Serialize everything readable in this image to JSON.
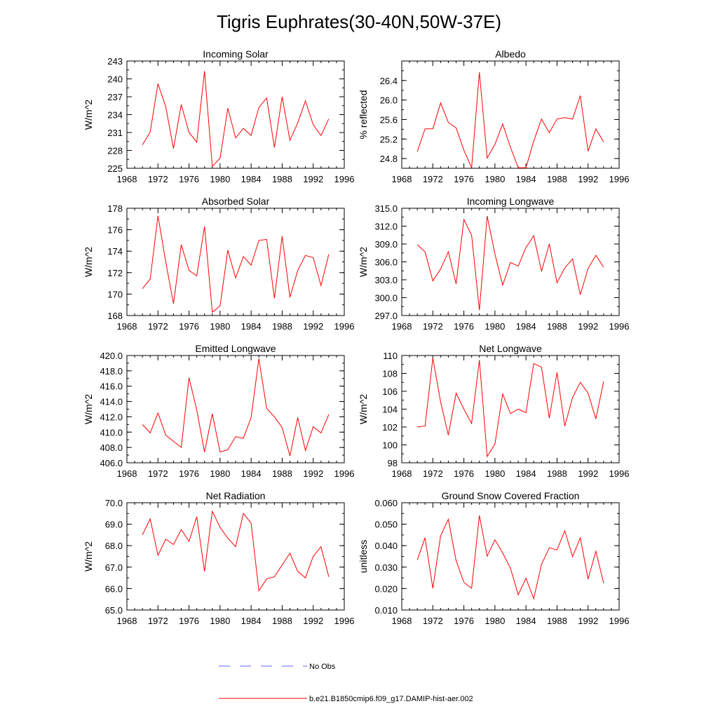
{
  "title": "Tigris Euphrates(30-40N,50W-37E)",
  "colors": {
    "model": "#ff0000",
    "obs": "#6666ff",
    "axis": "#000000"
  },
  "legend": {
    "obs_label": "No Obs",
    "model_label": "b.e21.B1850cmip6.f09_g17.DAMIP-hist-aer.002"
  },
  "chart_data": [
    {
      "type": "line",
      "title": "Incoming Solar",
      "ylabel": "W/m^2",
      "xlim": [
        1968,
        1996
      ],
      "xticks": [
        1968,
        1972,
        1976,
        1980,
        1984,
        1988,
        1992,
        1996
      ],
      "xtick_labels": [
        "1968",
        "1972",
        "1976",
        "1980",
        "1984",
        "1988",
        "1992",
        "1996"
      ],
      "ylim": [
        225,
        243
      ],
      "yticks": [
        225,
        228,
        231,
        234,
        237,
        240,
        243
      ],
      "ytick_labels": [
        "225",
        "228",
        "231",
        "234",
        "237",
        "240",
        "243"
      ],
      "x": [
        1970,
        1971,
        1972,
        1973,
        1974,
        1975,
        1976,
        1977,
        1978,
        1979,
        1980,
        1981,
        1982,
        1983,
        1984,
        1985,
        1986,
        1987,
        1988,
        1989,
        1990,
        1991,
        1992,
        1993,
        1994
      ],
      "y": [
        228.9,
        231.1,
        239.2,
        235.3,
        228.3,
        235.7,
        231.0,
        229.4,
        241.3,
        225.3,
        226.7,
        235.1,
        230.1,
        231.7,
        230.5,
        235.2,
        236.8,
        228.5,
        237.0,
        229.7,
        232.6,
        236.3,
        232.3,
        230.5,
        233.3
      ]
    },
    {
      "type": "line",
      "title": "Albedo",
      "ylabel": "% reflected",
      "xlim": [
        1968,
        1996
      ],
      "xticks": [
        1968,
        1972,
        1976,
        1980,
        1984,
        1988,
        1992,
        1996
      ],
      "xtick_labels": [
        "1968",
        "1972",
        "1976",
        "1980",
        "1984",
        "1988",
        "1992",
        "1996"
      ],
      "ylim": [
        24.6,
        26.8
      ],
      "yticks": [
        24.8,
        25.2,
        25.6,
        26.0,
        26.4
      ],
      "ytick_labels": [
        "24.8",
        "25.2",
        "25.6",
        "26.0",
        "26.4"
      ],
      "x": [
        1970,
        1971,
        1972,
        1973,
        1974,
        1975,
        1976,
        1977,
        1978,
        1979,
        1980,
        1981,
        1982,
        1983,
        1984,
        1985,
        1986,
        1987,
        1988,
        1989,
        1990,
        1991,
        1992,
        1993,
        1994
      ],
      "y": [
        24.94,
        25.41,
        25.41,
        25.94,
        25.54,
        25.43,
        24.97,
        24.61,
        26.57,
        24.81,
        25.09,
        25.51,
        25.03,
        24.61,
        24.61,
        25.16,
        25.61,
        25.33,
        25.61,
        25.64,
        25.61,
        26.09,
        24.95,
        25.41,
        25.14
      ]
    },
    {
      "type": "line",
      "title": "Absorbed Solar",
      "ylabel": "W/m^2",
      "xlim": [
        1968,
        1996
      ],
      "xticks": [
        1968,
        1972,
        1976,
        1980,
        1984,
        1988,
        1992,
        1996
      ],
      "xtick_labels": [
        "1968",
        "1972",
        "1976",
        "1980",
        "1984",
        "1988",
        "1992",
        "1996"
      ],
      "ylim": [
        168,
        178
      ],
      "yticks": [
        168,
        170,
        172,
        174,
        176,
        178
      ],
      "ytick_labels": [
        "168",
        "170",
        "172",
        "174",
        "176",
        "178"
      ],
      "x": [
        1970,
        1971,
        1972,
        1973,
        1974,
        1975,
        1976,
        1977,
        1978,
        1979,
        1980,
        1981,
        1982,
        1983,
        1984,
        1985,
        1986,
        1987,
        1988,
        1989,
        1990,
        1991,
        1992,
        1993,
        1994
      ],
      "y": [
        170.5,
        171.4,
        177.3,
        173.0,
        169.1,
        174.6,
        172.2,
        171.7,
        176.3,
        168.3,
        168.9,
        174.1,
        171.5,
        173.5,
        172.7,
        175.0,
        175.1,
        169.6,
        175.4,
        169.7,
        172.2,
        173.6,
        173.4,
        170.8,
        173.7
      ]
    },
    {
      "type": "line",
      "title": "Incoming Longwave",
      "ylabel": "W/m^2",
      "xlim": [
        1968,
        1996
      ],
      "xticks": [
        1968,
        1972,
        1976,
        1980,
        1984,
        1988,
        1992,
        1996
      ],
      "xtick_labels": [
        "1968",
        "1972",
        "1976",
        "1980",
        "1984",
        "1988",
        "1992",
        "1996"
      ],
      "ylim": [
        297,
        315
      ],
      "yticks": [
        297,
        300,
        303,
        306,
        309,
        312,
        315
      ],
      "ytick_labels": [
        "297.0",
        "300.0",
        "303.0",
        "306.0",
        "309.0",
        "312.0",
        "315.0"
      ],
      "x": [
        1970,
        1971,
        1972,
        1973,
        1974,
        1975,
        1976,
        1977,
        1978,
        1979,
        1980,
        1981,
        1982,
        1983,
        1984,
        1985,
        1986,
        1987,
        1988,
        1989,
        1990,
        1991,
        1992,
        1993,
        1994
      ],
      "y": [
        308.9,
        307.7,
        302.8,
        304.8,
        307.7,
        302.3,
        313.1,
        310.5,
        297.9,
        313.7,
        307.3,
        302.1,
        305.9,
        305.3,
        308.4,
        310.4,
        304.4,
        309.0,
        302.5,
        305.0,
        306.5,
        300.5,
        304.9,
        307.1,
        305.1
      ]
    },
    {
      "type": "line",
      "title": "Emitted Longwave",
      "ylabel": "W/m^2",
      "xlim": [
        1968,
        1996
      ],
      "xticks": [
        1968,
        1972,
        1976,
        1980,
        1984,
        1988,
        1992,
        1996
      ],
      "xtick_labels": [
        "1968",
        "1972",
        "1976",
        "1980",
        "1984",
        "1988",
        "1992",
        "1996"
      ],
      "ylim": [
        406,
        420
      ],
      "yticks": [
        406,
        408,
        410,
        412,
        414,
        416,
        418,
        420
      ],
      "ytick_labels": [
        "406.0",
        "408.0",
        "410.0",
        "412.0",
        "414.0",
        "416.0",
        "418.0",
        "420.0"
      ],
      "x": [
        1970,
        1971,
        1972,
        1973,
        1974,
        1975,
        1976,
        1977,
        1978,
        1979,
        1980,
        1981,
        1982,
        1983,
        1984,
        1985,
        1986,
        1987,
        1988,
        1989,
        1990,
        1991,
        1992,
        1993,
        1994
      ],
      "y": [
        411.0,
        409.9,
        412.5,
        409.6,
        408.8,
        408.0,
        417.1,
        412.9,
        407.4,
        412.4,
        407.4,
        407.7,
        409.4,
        409.2,
        411.9,
        419.6,
        413.1,
        412.0,
        410.6,
        406.9,
        411.9,
        407.6,
        410.7,
        409.9,
        412.3
      ]
    },
    {
      "type": "line",
      "title": "Net Longwave",
      "ylabel": "W/m^2",
      "xlim": [
        1968,
        1996
      ],
      "xticks": [
        1968,
        1972,
        1976,
        1980,
        1984,
        1988,
        1992,
        1996
      ],
      "xtick_labels": [
        "1968",
        "1972",
        "1976",
        "1980",
        "1984",
        "1988",
        "1992",
        "1996"
      ],
      "ylim": [
        98,
        110
      ],
      "yticks": [
        98,
        100,
        102,
        104,
        106,
        108,
        110
      ],
      "ytick_labels": [
        "98",
        "100",
        "102",
        "104",
        "106",
        "108",
        "110"
      ],
      "x": [
        1970,
        1971,
        1972,
        1973,
        1974,
        1975,
        1976,
        1977,
        1978,
        1979,
        1980,
        1981,
        1982,
        1983,
        1984,
        1985,
        1986,
        1987,
        1988,
        1989,
        1990,
        1991,
        1992,
        1993,
        1994
      ],
      "y": [
        102.0,
        102.1,
        109.7,
        104.8,
        101.1,
        105.8,
        104.0,
        102.4,
        109.5,
        98.7,
        100.1,
        105.7,
        103.5,
        104.0,
        103.6,
        109.1,
        108.7,
        103.0,
        108.1,
        102.1,
        105.3,
        107.0,
        105.8,
        102.9,
        107.1
      ]
    },
    {
      "type": "line",
      "title": "Net Radiation",
      "ylabel": "W/m^2",
      "xlim": [
        1968,
        1996
      ],
      "xticks": [
        1968,
        1972,
        1976,
        1980,
        1984,
        1988,
        1992,
        1996
      ],
      "xtick_labels": [
        "1968",
        "1972",
        "1976",
        "1980",
        "1984",
        "1988",
        "1992",
        "1996"
      ],
      "ylim": [
        65,
        70
      ],
      "yticks": [
        65,
        66,
        67,
        68,
        69,
        70
      ],
      "ytick_labels": [
        "65.0",
        "66.0",
        "67.0",
        "68.0",
        "69.0",
        "70.0"
      ],
      "x": [
        1970,
        1971,
        1972,
        1973,
        1974,
        1975,
        1976,
        1977,
        1978,
        1979,
        1980,
        1981,
        1982,
        1983,
        1984,
        1985,
        1986,
        1987,
        1988,
        1989,
        1990,
        1991,
        1992,
        1993,
        1994
      ],
      "y": [
        68.5,
        69.25,
        67.55,
        68.3,
        68.05,
        68.75,
        68.2,
        69.35,
        66.8,
        69.6,
        68.85,
        68.35,
        67.95,
        69.5,
        69.05,
        65.9,
        66.45,
        66.55,
        67.1,
        67.65,
        66.8,
        66.5,
        67.5,
        67.95,
        66.55
      ]
    },
    {
      "type": "line",
      "title": "Ground Snow Covered Fraction",
      "ylabel": "unitless",
      "xlim": [
        1968,
        1996
      ],
      "xticks": [
        1968,
        1972,
        1976,
        1980,
        1984,
        1988,
        1992,
        1996
      ],
      "xtick_labels": [
        "1968",
        "1972",
        "1976",
        "1980",
        "1984",
        "1988",
        "1992",
        "1996"
      ],
      "ylim": [
        0.01,
        0.06
      ],
      "yticks": [
        0.01,
        0.02,
        0.03,
        0.04,
        0.05,
        0.06
      ],
      "ytick_labels": [
        "0.010",
        "0.020",
        "0.030",
        "0.040",
        "0.050",
        "0.060"
      ],
      "x": [
        1970,
        1971,
        1972,
        1973,
        1974,
        1975,
        1976,
        1977,
        1978,
        1979,
        1980,
        1981,
        1982,
        1983,
        1984,
        1985,
        1986,
        1987,
        1988,
        1989,
        1990,
        1991,
        1992,
        1993,
        1994
      ],
      "y": [
        0.0333,
        0.0437,
        0.0201,
        0.0446,
        0.0523,
        0.033,
        0.0229,
        0.0201,
        0.0541,
        0.0351,
        0.0427,
        0.0366,
        0.0295,
        0.0171,
        0.0248,
        0.0153,
        0.0313,
        0.039,
        0.038,
        0.0469,
        0.0349,
        0.0437,
        0.0244,
        0.0374,
        0.0225
      ]
    }
  ]
}
